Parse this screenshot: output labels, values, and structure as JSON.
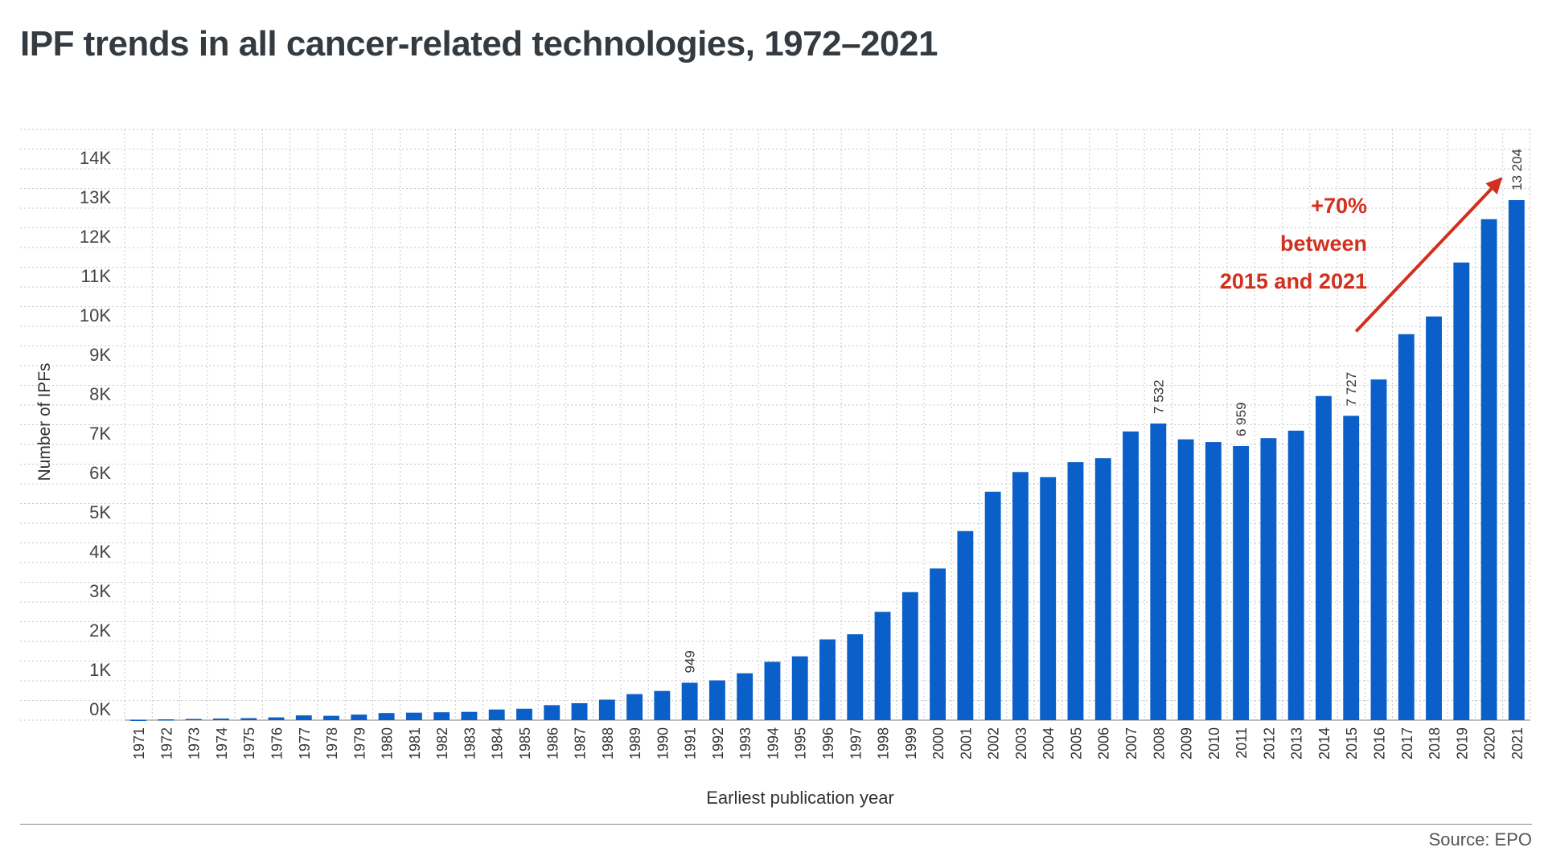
{
  "header": {
    "title": "IPF trends in all cancer-related technologies, 1972–2021"
  },
  "footer": {
    "source": "Source: EPO"
  },
  "colors": {
    "bar": "#0a60c8",
    "annotation": "#d32f1e",
    "grid": "#c7c7c7",
    "text": "#333333"
  },
  "annotation": {
    "lines": [
      "+70%",
      "between",
      "2015 and 2021"
    ],
    "from_category": "2015",
    "to_category": "2021"
  },
  "chart_data": {
    "type": "bar",
    "title": "IPF trends in all cancer-related technologies, 1972–2021",
    "xlabel": "Earliest publication year",
    "ylabel": "Number of IPFs",
    "ylim": [
      0,
      15000
    ],
    "yticks": [
      0,
      1000,
      2000,
      3000,
      4000,
      5000,
      6000,
      7000,
      8000,
      9000,
      10000,
      11000,
      12000,
      13000,
      14000
    ],
    "ytick_labels": [
      "0K",
      "1K",
      "2K",
      "3K",
      "4K",
      "5K",
      "6K",
      "7K",
      "8K",
      "9K",
      "10K",
      "11K",
      "12K",
      "13K",
      "14K"
    ],
    "grid": true,
    "categories": [
      "1971",
      "1972",
      "1973",
      "1974",
      "1975",
      "1976",
      "1977",
      "1978",
      "1979",
      "1980",
      "1981",
      "1982",
      "1983",
      "1984",
      "1985",
      "1986",
      "1987",
      "1988",
      "1989",
      "1990",
      "1991",
      "1992",
      "1993",
      "1994",
      "1995",
      "1996",
      "1997",
      "1998",
      "1999",
      "2000",
      "2001",
      "2002",
      "2003",
      "2004",
      "2005",
      "2006",
      "2007",
      "2008",
      "2009",
      "2010",
      "2011",
      "2012",
      "2013",
      "2014",
      "2015",
      "2016",
      "2017",
      "2018",
      "2019",
      "2020",
      "2021"
    ],
    "values": [
      10,
      20,
      30,
      40,
      50,
      70,
      120,
      110,
      140,
      180,
      190,
      200,
      210,
      270,
      290,
      380,
      430,
      520,
      660,
      740,
      949,
      1010,
      1190,
      1480,
      1620,
      2050,
      2180,
      2750,
      3250,
      3850,
      4800,
      5800,
      6300,
      6170,
      6550,
      6650,
      7330,
      7532,
      7130,
      7060,
      6959,
      7160,
      7350,
      8230,
      7727,
      8650,
      9800,
      10250,
      11620,
      12720,
      13204
    ],
    "data_labels": [
      {
        "category": "1991",
        "text": "949"
      },
      {
        "category": "2008",
        "text": "7 532"
      },
      {
        "category": "2011",
        "text": "6 959"
      },
      {
        "category": "2015",
        "text": "7 727"
      },
      {
        "category": "2021",
        "text": "13 204"
      }
    ]
  }
}
